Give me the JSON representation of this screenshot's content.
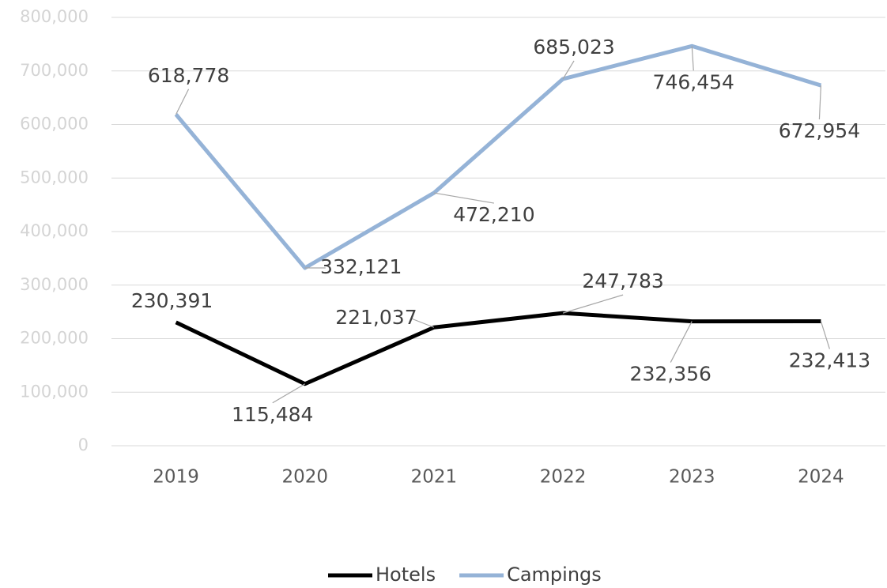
{
  "chart_data": {
    "type": "line",
    "categories": [
      "2019",
      "2020",
      "2021",
      "2022",
      "2023",
      "2024"
    ],
    "series": [
      {
        "name": "Hotels",
        "color": "#000000",
        "values": [
          230391,
          115484,
          221037,
          247783,
          232356,
          232413
        ],
        "value_labels": [
          "230,391",
          "115,484",
          "221,037",
          "247,783",
          "232,356",
          "232,413"
        ]
      },
      {
        "name": "Campings",
        "color": "#95b3d7",
        "values": [
          618778,
          332121,
          472210,
          685023,
          746454,
          672954
        ],
        "value_labels": [
          "618,778",
          "332,121",
          "472,210",
          "685,023",
          "746,454",
          "672,954"
        ]
      }
    ],
    "ylim": [
      0,
      800000
    ],
    "yticks": [
      {
        "value": 0,
        "label": "0"
      },
      {
        "value": 100000,
        "label": "100,000"
      },
      {
        "value": 200000,
        "label": "200,000"
      },
      {
        "value": 300000,
        "label": "300,000"
      },
      {
        "value": 400000,
        "label": "400,000"
      },
      {
        "value": 500000,
        "label": "500,000"
      },
      {
        "value": 600000,
        "label": "600,000"
      },
      {
        "value": 700000,
        "label": "700,000"
      },
      {
        "value": 800000,
        "label": "800,000"
      }
    ],
    "grid": true,
    "legend": "bottom"
  }
}
